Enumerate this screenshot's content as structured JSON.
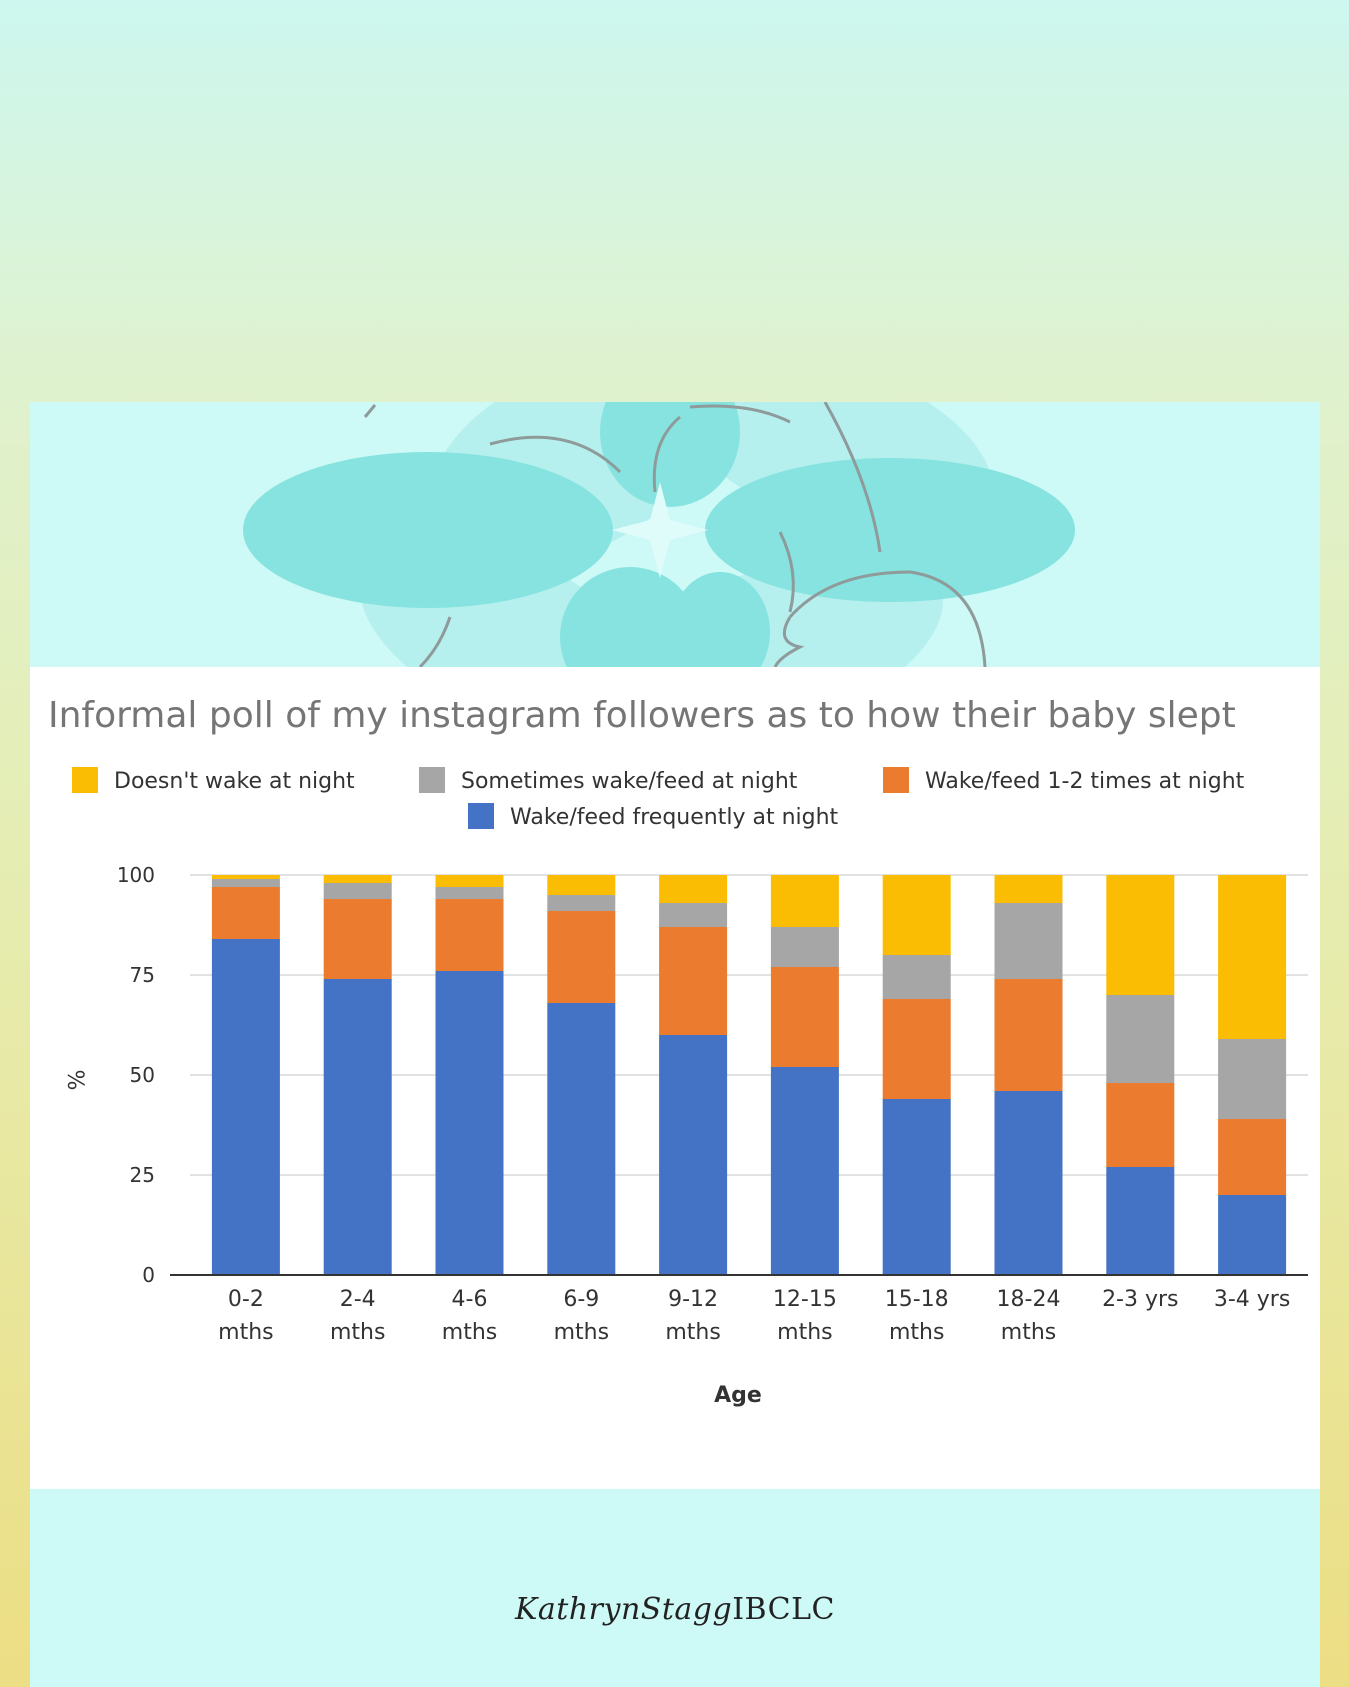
{
  "brand": {
    "signature_italic": "KathrynStagg",
    "signature_plain": "IBCLC"
  },
  "colors": {
    "doesnt_wake": "#fbbc04",
    "sometimes": "#a6a6a6",
    "one_two": "#ea7b2f",
    "frequently": "#4472c4",
    "banner_petal": "#86e3df",
    "card_bg": "#cdf9f6"
  },
  "chart_data": {
    "type": "bar",
    "stacked": true,
    "title": "Informal poll of my instagram followers as to how their baby slept",
    "xlabel": "Age",
    "ylabel": "%",
    "ylim": [
      0,
      100
    ],
    "yticks": [
      0,
      25,
      50,
      75,
      100
    ],
    "grid": true,
    "legend_position": "top",
    "categories": [
      [
        "0-2",
        "mths"
      ],
      [
        "2-4",
        "mths"
      ],
      [
        "4-6",
        "mths"
      ],
      [
        "6-9",
        "mths"
      ],
      [
        "9-12",
        "mths"
      ],
      [
        "12-15",
        "mths"
      ],
      [
        "15-18",
        "mths"
      ],
      [
        "18-24",
        "mths"
      ],
      [
        "2-3 yrs"
      ],
      [
        "3-4 yrs"
      ]
    ],
    "series": [
      {
        "name": "Wake/feed frequently at night",
        "color": "#4472c4",
        "values": [
          84,
          74,
          76,
          68,
          60,
          52,
          44,
          46,
          27,
          20
        ]
      },
      {
        "name": "Wake/feed 1-2 times at night",
        "color": "#ea7b2f",
        "values": [
          13,
          20,
          18,
          23,
          27,
          25,
          25,
          28,
          21,
          19
        ]
      },
      {
        "name": "Sometimes wake/feed at night",
        "color": "#a6a6a6",
        "values": [
          2,
          4,
          3,
          4,
          6,
          10,
          11,
          19,
          22,
          20
        ]
      },
      {
        "name": "Doesn't wake at night",
        "color": "#fbbc04",
        "values": [
          1,
          2,
          3,
          5,
          7,
          13,
          20,
          7,
          30,
          41
        ]
      }
    ],
    "legend_order": [
      "Doesn't wake at night",
      "Sometimes wake/feed at night",
      "Wake/feed 1-2 times at night",
      "Wake/feed frequently at night"
    ]
  }
}
